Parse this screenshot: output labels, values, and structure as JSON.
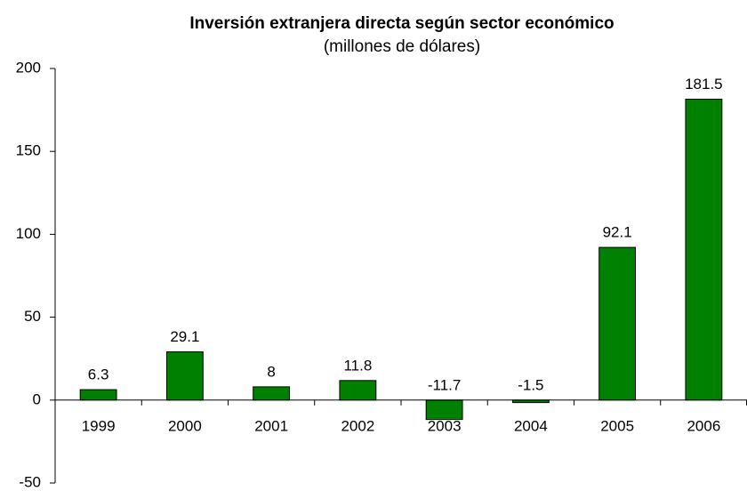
{
  "chart_data": {
    "type": "bar",
    "title": "Inversión extranjera directa según sector económico",
    "subtitle": "(millones de dólares)",
    "categories": [
      "1999",
      "2000",
      "2001",
      "2002",
      "2003",
      "2004",
      "2005",
      "2006"
    ],
    "values": [
      6.3,
      29.1,
      8,
      11.8,
      -11.7,
      -1.5,
      92.1,
      181.5
    ],
    "color": "#008000",
    "ylim": [
      -50,
      200
    ],
    "yticks": [
      -50,
      0,
      50,
      100,
      150,
      200
    ],
    "grid": false
  }
}
